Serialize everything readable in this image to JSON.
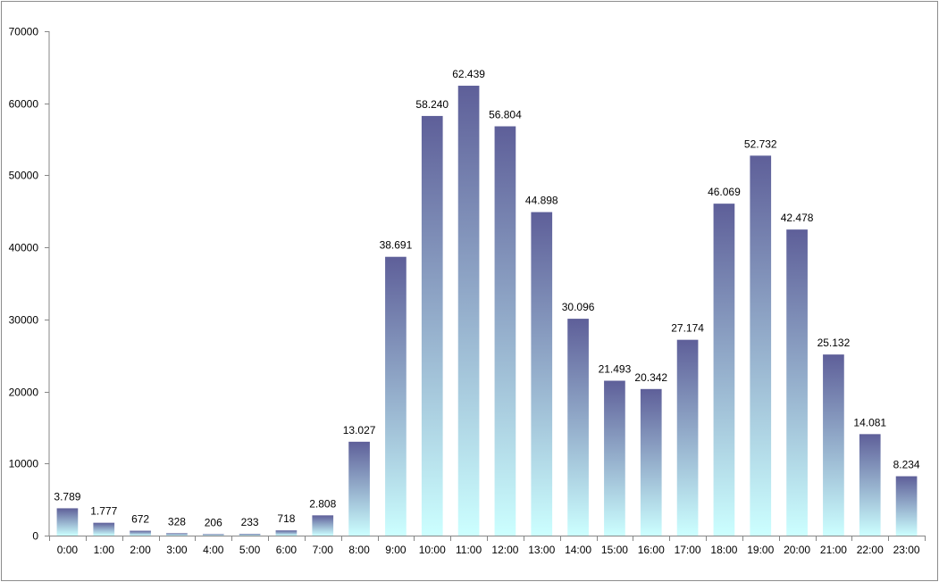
{
  "chart_data": {
    "type": "bar",
    "title": "",
    "xlabel": "",
    "ylabel": "",
    "ylim": [
      0,
      70000
    ],
    "yticks": [
      0,
      10000,
      20000,
      30000,
      40000,
      50000,
      60000,
      70000
    ],
    "ytick_labels": [
      "0",
      "10000",
      "20000",
      "30000",
      "40000",
      "50000",
      "60000",
      "70000"
    ],
    "categories": [
      "0:00",
      "1:00",
      "2:00",
      "3:00",
      "4:00",
      "5:00",
      "6:00",
      "7:00",
      "8:00",
      "9:00",
      "10:00",
      "11:00",
      "12:00",
      "13:00",
      "14:00",
      "15:00",
      "16:00",
      "17:00",
      "18:00",
      "19:00",
      "20:00",
      "21:00",
      "22:00",
      "23:00"
    ],
    "values": [
      3789,
      1777,
      672,
      328,
      206,
      233,
      718,
      2808,
      13027,
      38691,
      58240,
      62439,
      56804,
      44898,
      30096,
      21493,
      20342,
      27174,
      46069,
      52732,
      42478,
      25132,
      14081,
      8234
    ],
    "data_labels": [
      "3.789",
      "1.777",
      "672",
      "328",
      "206",
      "233",
      "718",
      "2.808",
      "13.027",
      "38.691",
      "58.240",
      "62.439",
      "56.804",
      "44.898",
      "30.096",
      "21.493",
      "20.342",
      "27.174",
      "46.069",
      "52.732",
      "42.478",
      "25.132",
      "14.081",
      "8.234"
    ],
    "grid": false,
    "legend": "none",
    "colors": {
      "bar_top": "#5e5f99",
      "bar_bottom": "#ccffff",
      "axis": "#868686",
      "frame": "#8c8c8c"
    }
  }
}
